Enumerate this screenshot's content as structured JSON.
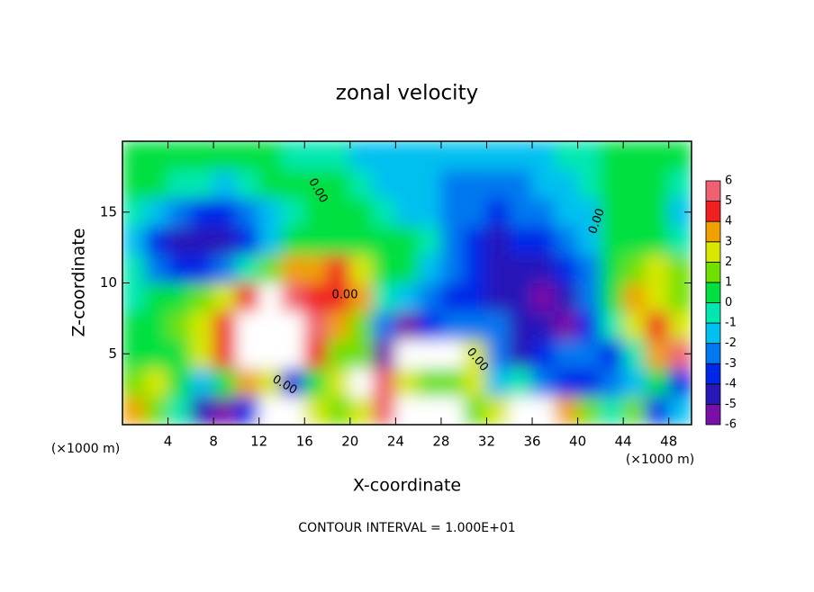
{
  "chart_data": {
    "type": "contour",
    "title": "zonal velocity",
    "xlabel": "X-coordinate",
    "ylabel": "Z-coordinate",
    "x_unit_labels": [
      "(×1000 m)",
      "(×1000 m)"
    ],
    "annotation": "CONTOUR INTERVAL = 1.000E+01",
    "contour_labels": [
      "0.00",
      "0.00",
      "0.00",
      "0.00",
      "0.00"
    ],
    "xlim": [
      0,
      50
    ],
    "ylim": [
      0,
      20
    ],
    "xticks": [
      4,
      8,
      12,
      16,
      20,
      24,
      28,
      32,
      36,
      40,
      44,
      48
    ],
    "yticks": [
      5,
      10,
      15
    ],
    "x": [
      1,
      3,
      5,
      7,
      9,
      11,
      13,
      15,
      17,
      19,
      21,
      23,
      25,
      27,
      29,
      31,
      33,
      35,
      37,
      39,
      41,
      43,
      45,
      47,
      49
    ],
    "y": [
      1,
      3,
      5,
      7,
      9,
      11,
      13,
      15,
      17,
      19
    ],
    "z": [
      [
        4,
        2,
        0,
        -4,
        -5,
        -3,
        7,
        8,
        3,
        2,
        3,
        6,
        8,
        8,
        7,
        2,
        3,
        7,
        8,
        4,
        2,
        0,
        2,
        -3,
        -1
      ],
      [
        2,
        3,
        1,
        -1,
        0.5,
        4,
        3,
        -3,
        0.5,
        3,
        8,
        6,
        3,
        2,
        2,
        3,
        -1,
        0,
        -2,
        -3,
        -3,
        -2,
        -1,
        1,
        -3
      ],
      [
        1,
        0.5,
        1,
        3,
        5,
        7,
        8,
        8,
        5,
        2,
        2,
        -6,
        7,
        8,
        8,
        3,
        -2,
        -4,
        -3,
        -2,
        -2,
        -3,
        0,
        4,
        6
      ],
      [
        0.5,
        1,
        2,
        3,
        5,
        7,
        8,
        8,
        6,
        4,
        2,
        -2,
        -5,
        -3,
        -2,
        -2.5,
        -2,
        -4,
        -4,
        -5,
        -3,
        0,
        3,
        5,
        3
      ],
      [
        0,
        0.5,
        1,
        2,
        3,
        5,
        7,
        6,
        5,
        5,
        4,
        0,
        -1,
        -2,
        -3,
        -3.5,
        -4,
        -4.5,
        -5,
        -4,
        -2,
        1,
        4,
        3,
        2
      ],
      [
        -0.5,
        -2,
        -3,
        -3.5,
        -2,
        -0.5,
        2,
        4,
        4,
        5,
        3,
        1,
        0.5,
        -1,
        -2.5,
        -3,
        -4.5,
        -4,
        -4,
        -3,
        -2,
        0.5,
        2,
        3,
        2
      ],
      [
        -1,
        -3,
        -4,
        -4.5,
        -4,
        -3,
        -1,
        0.5,
        1,
        1,
        0.5,
        1,
        0.5,
        -0.5,
        -2,
        -3,
        -4,
        -3.5,
        -3,
        -2,
        -1,
        0.5,
        1,
        0.5,
        0
      ],
      [
        0,
        -1,
        -2,
        -3,
        -3,
        -2,
        -1,
        0,
        0.5,
        0.5,
        0.5,
        0,
        -1,
        -1.5,
        -2,
        -2.5,
        -3,
        -2.5,
        -2,
        -1.5,
        -1,
        0.5,
        0.5,
        0.5,
        -1
      ],
      [
        0.5,
        0.5,
        0,
        -0.5,
        -1,
        -0.5,
        0.5,
        0.5,
        0.5,
        0.5,
        0,
        -1,
        -1.5,
        -1.5,
        -2,
        -2,
        -2,
        -2,
        -1.5,
        -1,
        -0.5,
        0.5,
        0.5,
        0.5,
        -0.5
      ],
      [
        0.5,
        0.5,
        0.5,
        0.5,
        0.5,
        0.5,
        0.5,
        0,
        0,
        -0.5,
        -1,
        -1,
        -1,
        -1.5,
        -1.5,
        -1.5,
        -1.5,
        -1.5,
        -1,
        -0.5,
        -0.5,
        0.5,
        0.5,
        0.5,
        0.5
      ]
    ],
    "levels": [
      -6,
      -5,
      -4,
      -3,
      -2,
      -1,
      0,
      1,
      2,
      3,
      4,
      5,
      6
    ],
    "level_colors": [
      "#7a10a8",
      "#2818b8",
      "#0028e8",
      "#0078f0",
      "#00c0f0",
      "#00e8b0",
      "#00e040",
      "#70e000",
      "#d8e800",
      "#f0a000",
      "#f02020",
      "#f06070"
    ],
    "overflow_color": "#ffffff"
  }
}
